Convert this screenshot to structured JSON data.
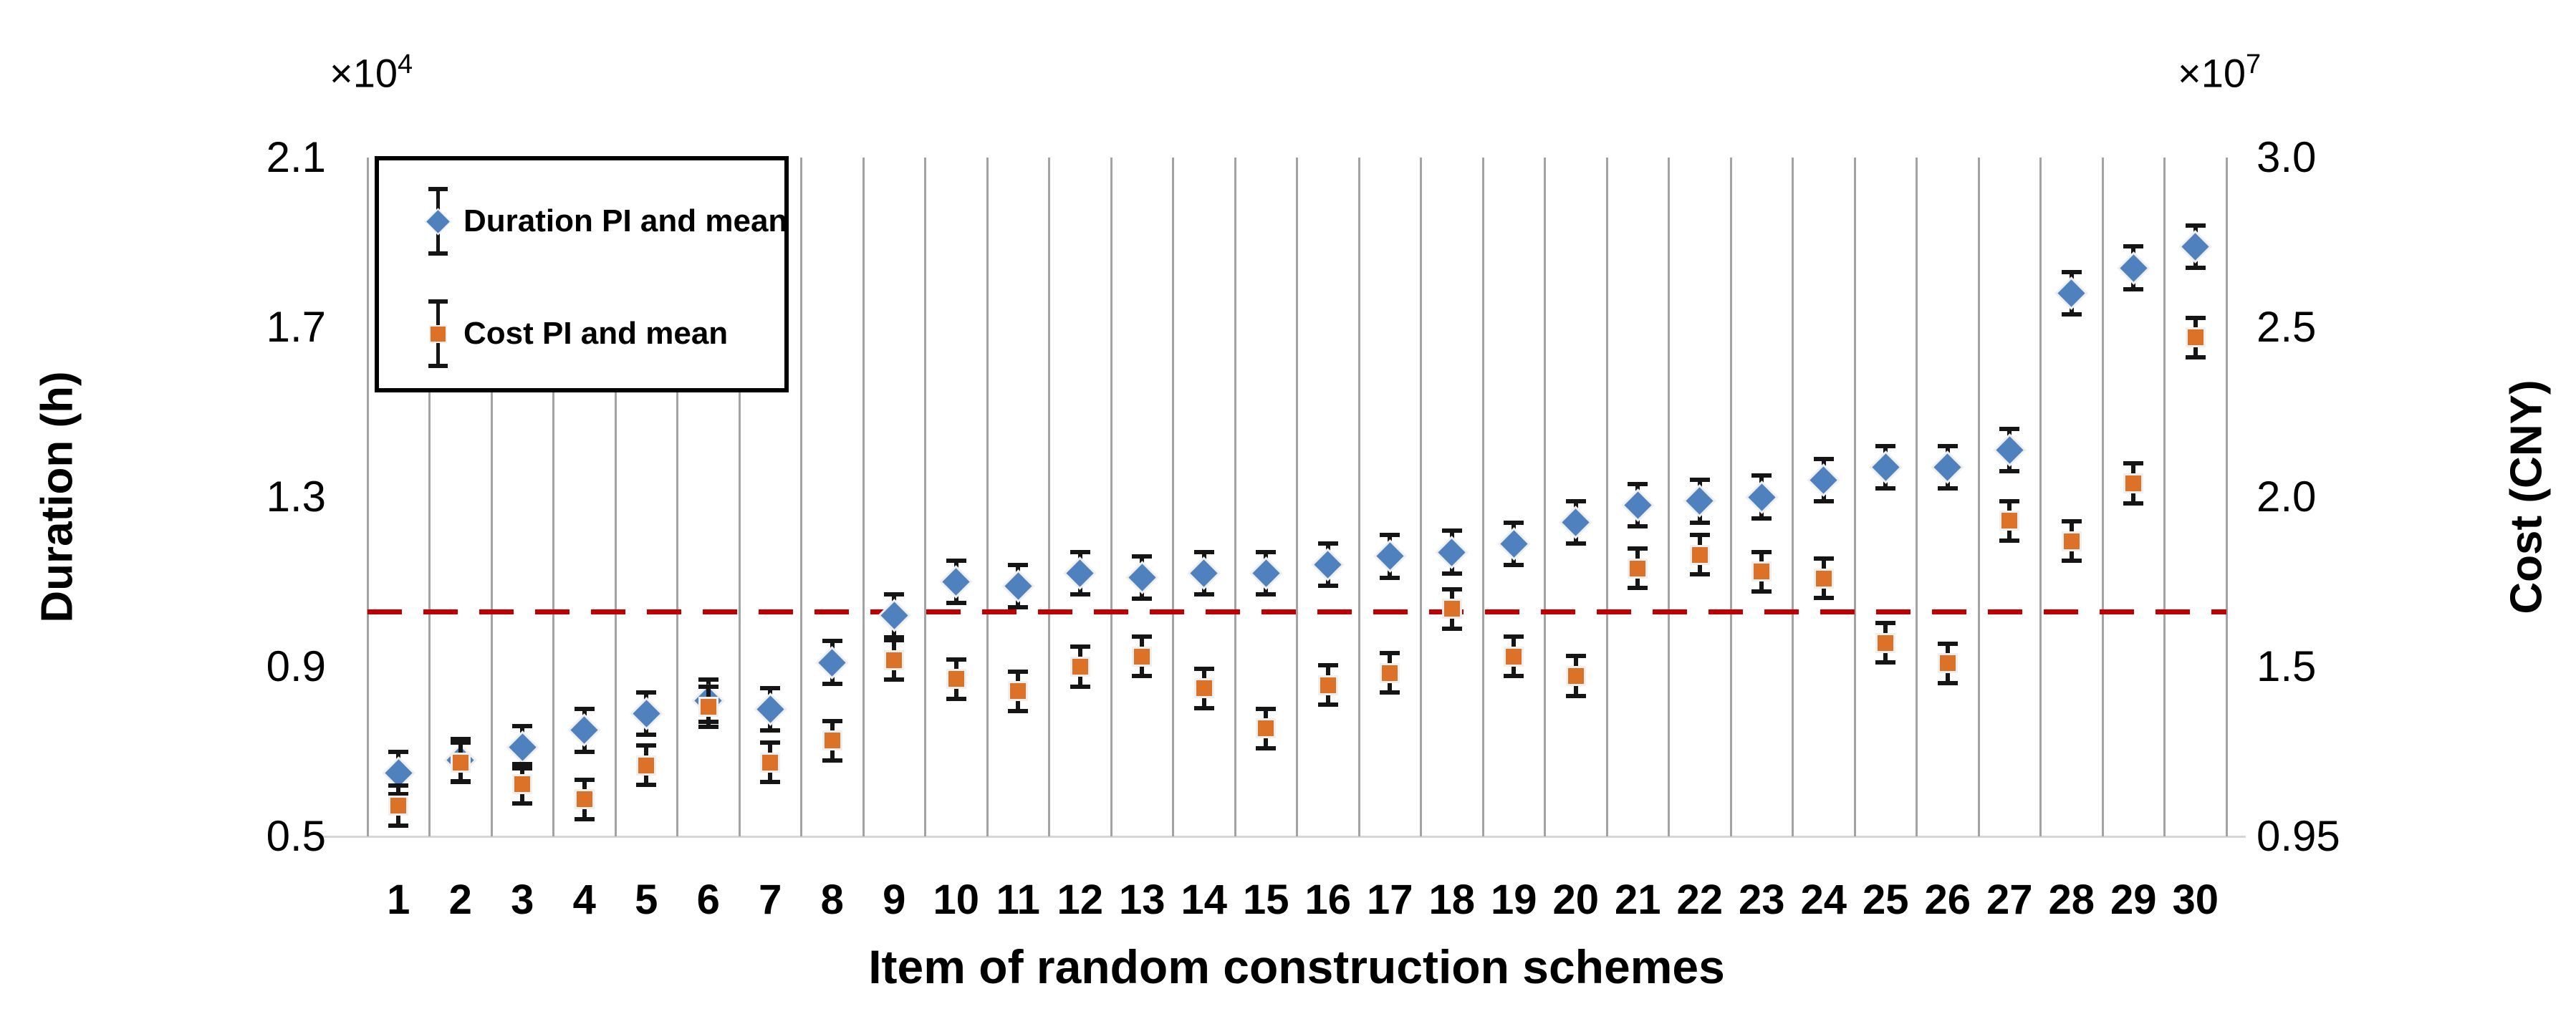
{
  "figure": {
    "left_axis": {
      "title": "Duration (h)",
      "multiplier_base": "×10",
      "multiplier_exp": "4",
      "ticks": [
        "2.1",
        "1.7",
        "1.3",
        "0.9",
        "0.5"
      ]
    },
    "right_axis": {
      "title": "Cost (CNY)",
      "multiplier_base": "×10",
      "multiplier_exp": "7",
      "ticks": [
        "3.0",
        "2.5",
        "2.0",
        "1.5",
        "0.95"
      ]
    },
    "x_axis": {
      "title": "Item of random construction schemes",
      "ticks": [
        "1",
        "2",
        "3",
        "4",
        "5",
        "6",
        "7",
        "8",
        "9",
        "10",
        "11",
        "12",
        "13",
        "14",
        "15",
        "16",
        "17",
        "18",
        "19",
        "20",
        "21",
        "22",
        "23",
        "24",
        "25",
        "26",
        "27",
        "28",
        "29",
        "30"
      ]
    },
    "legend": {
      "items": [
        {
          "label": "Duration PI and mean",
          "marker": "diamond-with-error-bar",
          "color": "#4E81BD"
        },
        {
          "label": "Cost PI and mean",
          "marker": "square-with-error-bar",
          "color": "#DC7228"
        }
      ]
    },
    "colors": {
      "duration_series": "#4E81BD",
      "cost_series": "#DC7228",
      "reference_line": "#C00000",
      "gridline": "#A3A3A3",
      "error_bar": "#151515"
    }
  },
  "chart_data": {
    "type": "scatter",
    "title": "",
    "xlabel": "Item of random construction schemes",
    "ylabel_left": "Duration (h)",
    "ylabel_right": "Cost (CNY)",
    "left_axis_multiplier": "×10^4",
    "right_axis_multiplier": "×10^7",
    "x": [
      1,
      2,
      3,
      4,
      5,
      6,
      7,
      8,
      9,
      10,
      11,
      12,
      13,
      14,
      15,
      16,
      17,
      18,
      19,
      20,
      21,
      22,
      23,
      24,
      25,
      26,
      27,
      28,
      29,
      30
    ],
    "left_axis_range": [
      0.5,
      2.1
    ],
    "left_axis_ticks": [
      2.1,
      1.7,
      1.3,
      0.9,
      0.5
    ],
    "right_axis_ticks": [
      3.0,
      2.5,
      2.0,
      1.5,
      0.95
    ],
    "grid": "vertical-only",
    "legend_position": "top-left-inside",
    "reference_line": {
      "axis": "left",
      "value": 1.03,
      "style": "dashed",
      "color": "#C00000"
    },
    "series": [
      {
        "name": "Duration PI and mean",
        "axis": "left",
        "unit": "x10^4 h",
        "marker": "diamond",
        "color": "#4E81BD",
        "error_half_range": 0.05,
        "values": [
          0.65,
          0.68,
          0.71,
          0.75,
          0.79,
          0.82,
          0.8,
          0.91,
          1.02,
          1.1,
          1.09,
          1.12,
          1.11,
          1.12,
          1.12,
          1.14,
          1.16,
          1.17,
          1.19,
          1.24,
          1.28,
          1.29,
          1.3,
          1.34,
          1.37,
          1.37,
          1.41,
          1.78,
          1.84,
          1.89
        ]
      },
      {
        "name": "Cost PI and mean",
        "axis": "right",
        "unit": "x10^7 CNY",
        "marker": "square",
        "color": "#DC7228",
        "error_half_range": 0.06,
        "values": [
          1.05,
          1.19,
          1.12,
          1.07,
          1.18,
          1.37,
          1.19,
          1.26,
          1.52,
          1.46,
          1.42,
          1.5,
          1.53,
          1.43,
          1.3,
          1.44,
          1.48,
          1.67,
          1.53,
          1.47,
          1.79,
          1.83,
          1.78,
          1.76,
          1.57,
          1.51,
          1.93,
          1.87,
          2.04,
          2.47
        ]
      }
    ]
  }
}
